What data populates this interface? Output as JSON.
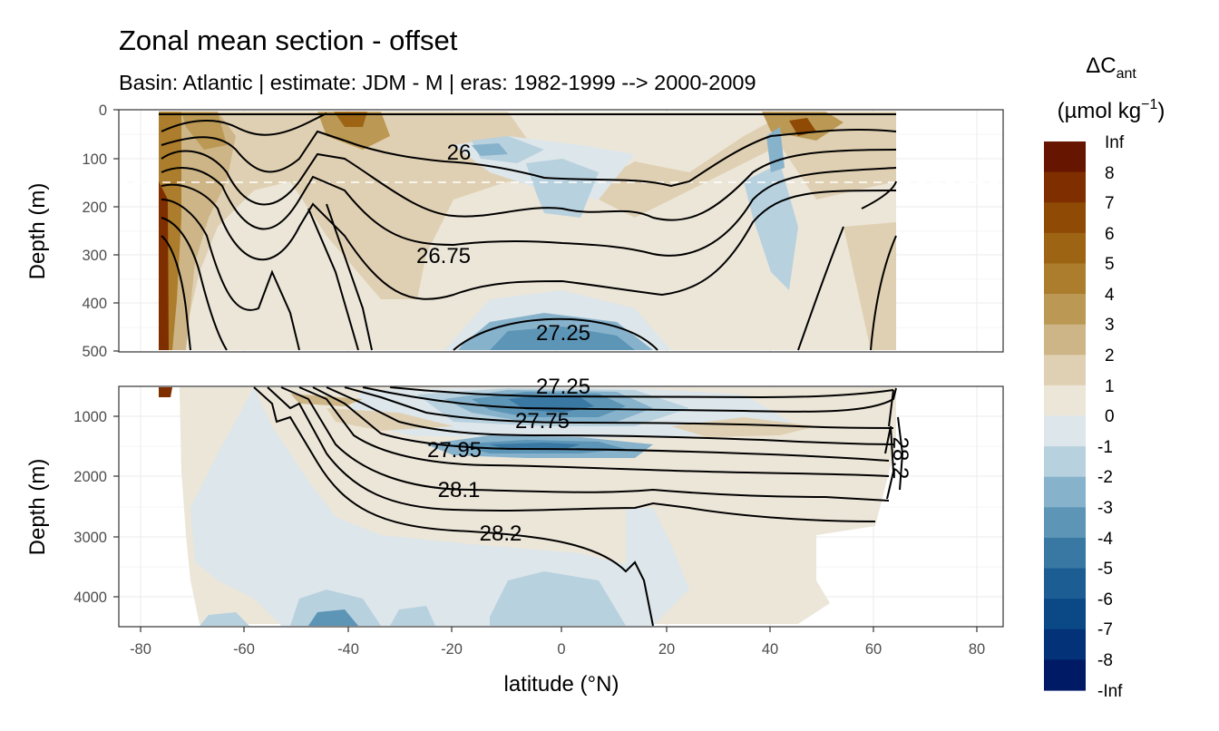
{
  "chart_data": {
    "type": "contour",
    "title": "Zonal mean section - offset",
    "subtitle": "Basin: Atlantic | estimate: JDM - M | eras: 1982-1999 --> 2000-2009",
    "xlabel": "latitude (°N)",
    "ylabel": "Depth (m)",
    "xlim": [
      -85,
      85
    ],
    "x_ticks": [
      -80,
      -60,
      -40,
      -20,
      0,
      20,
      40,
      60,
      80
    ],
    "data_extent_lat": [
      -78,
      64.5
    ],
    "panels": [
      {
        "name": "upper",
        "ylim": [
          0,
          500
        ],
        "y_ticks": [
          0,
          100,
          200,
          300,
          400,
          500
        ],
        "dashed_reference_depth": 150
      },
      {
        "name": "lower",
        "ylim": [
          500,
          4500
        ],
        "y_ticks": [
          1000,
          2000,
          3000,
          4000
        ]
      }
    ],
    "legend": {
      "title_main": "ΔC",
      "title_sub": "ant",
      "unit_main": "(µmol kg",
      "unit_sup": "−1",
      "unit_end": ")",
      "breaks": [
        "Inf",
        "8",
        "7",
        "6",
        "5",
        "4",
        "3",
        "2",
        "1",
        "0",
        "-1",
        "-2",
        "-3",
        "-4",
        "-5",
        "-6",
        "-7",
        "-8",
        "-Inf"
      ],
      "colors": [
        "#661500",
        "#7f2e00",
        "#8f4a05",
        "#9d6414",
        "#ab7d2c",
        "#bb9954",
        "#cdb587",
        "#e0d0b3",
        "#ece6d9",
        "#dde6ea",
        "#b8d1df",
        "#87b2cb",
        "#5d95b6",
        "#3a78a4",
        "#1c5e94",
        "#0a4886",
        "#033279",
        "#001a66"
      ]
    },
    "isopycnal_labels": [
      {
        "text": "26",
        "lat": -20,
        "depth": 85
      },
      {
        "text": "26.75",
        "lat": -23,
        "depth": 300
      },
      {
        "text": "27.25",
        "lat": 0,
        "depth": 460
      },
      {
        "text": "27.25",
        "lat": 0,
        "depth": 500
      },
      {
        "text": "27.75",
        "lat": -6,
        "depth": 1060
      },
      {
        "text": "27.95",
        "lat": -20,
        "depth": 1550
      },
      {
        "text": "28.1",
        "lat": -20,
        "depth": 2220
      },
      {
        "text": "28.2",
        "lat": -12,
        "depth": 2900
      },
      {
        "text": "28.2",
        "lat": 63,
        "depth": 1700
      }
    ]
  }
}
